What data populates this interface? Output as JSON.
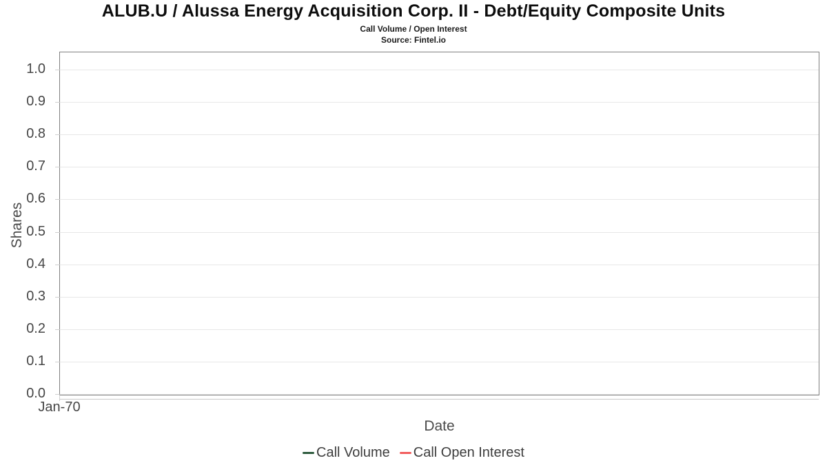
{
  "chart_data": {
    "type": "line",
    "title": "ALUB.U / Alussa Energy Acquisition Corp. II - Debt/Equity Composite Units",
    "subtitle": "Call Volume / Open Interest",
    "source": "Source: Fintel.io",
    "xlabel": "Date",
    "ylabel": "Shares",
    "ylim": [
      0.0,
      1.0
    ],
    "y_ticks": [
      "0.0",
      "0.1",
      "0.2",
      "0.3",
      "0.4",
      "0.5",
      "0.6",
      "0.7",
      "0.8",
      "0.9",
      "1.0"
    ],
    "x_ticks": [
      "Jan-70"
    ],
    "grid": "horizontal",
    "legend_position": "bottom",
    "series": [
      {
        "name": "Call Volume",
        "color": "#2d5a3d",
        "x": [],
        "values": []
      },
      {
        "name": "Call Open Interest",
        "color": "#f15c5c",
        "x": [],
        "values": []
      }
    ],
    "colors": {
      "plot_border": "#7d7d7d",
      "gridline": "#e7e7e7",
      "tick": "#cfcfcf",
      "tick_label": "#454545",
      "axis_title": "#4a4a4a",
      "legend_text": "#3d3d3d"
    }
  }
}
